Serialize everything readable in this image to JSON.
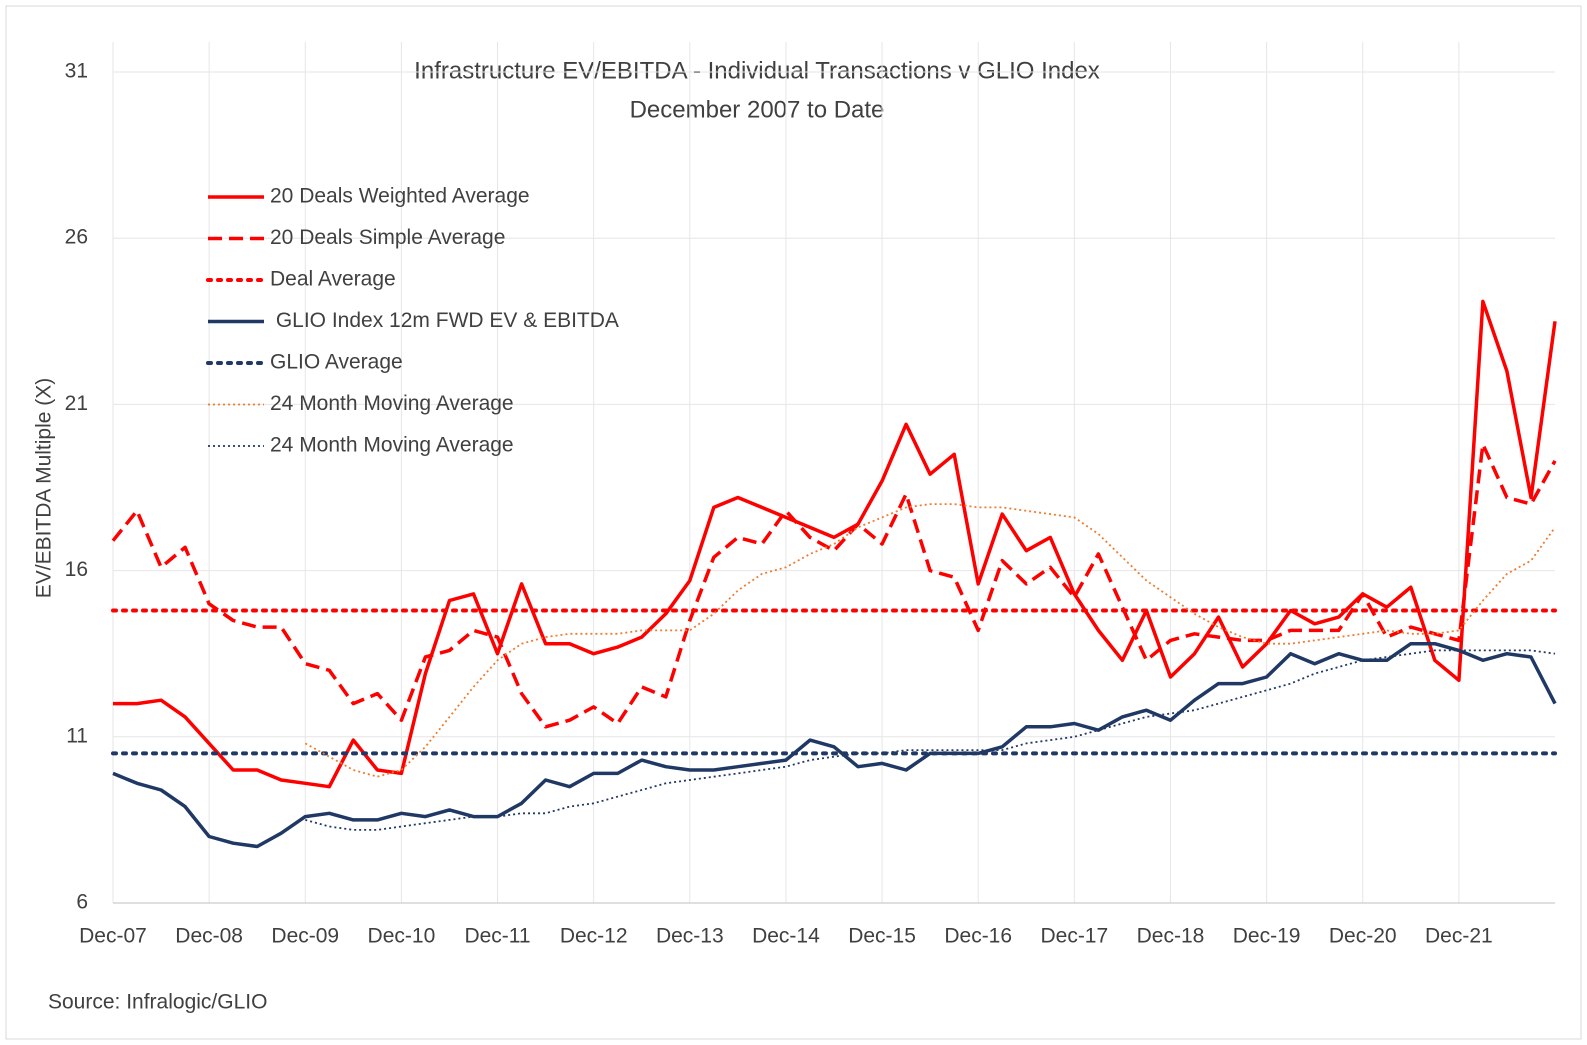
{
  "chart_data": {
    "type": "line",
    "title": "Infrastructure EV/EBITDA - Individual Transactions v GLIO Index",
    "subtitle": "December 2007 to Date",
    "y_label": "EV/EBITDA Multiple (X)",
    "source": "Source: Infralogic/GLIO",
    "categories": [
      "Dec-07",
      null,
      null,
      null,
      "Dec-08",
      null,
      null,
      null,
      "Dec-09",
      null,
      null,
      null,
      "Dec-10",
      null,
      null,
      null,
      "Dec-11",
      null,
      null,
      null,
      "Dec-12",
      null,
      null,
      null,
      "Dec-13",
      null,
      null,
      null,
      "Dec-14",
      null,
      null,
      null,
      "Dec-15",
      null,
      null,
      null,
      "Dec-16",
      null,
      null,
      null,
      "Dec-17",
      null,
      null,
      null,
      "Dec-18",
      null,
      null,
      null,
      "Dec-19",
      null,
      null,
      null,
      "Dec-20",
      null,
      null,
      null,
      "Dec-21",
      null,
      null,
      null,
      null
    ],
    "ylim": [
      6,
      31
    ],
    "yticks": [
      6,
      11,
      16,
      21,
      26,
      31
    ],
    "grid": true,
    "series": [
      {
        "name": "20 Deals Weighted Average",
        "color": "#ff0000",
        "style": "solid",
        "values": [
          12.0,
          12.0,
          12.1,
          11.6,
          10.8,
          10.0,
          10.0,
          9.7,
          9.6,
          9.5,
          10.9,
          10.0,
          9.9,
          12.9,
          15.1,
          15.3,
          13.5,
          15.6,
          13.8,
          13.8,
          13.5,
          13.7,
          14.0,
          14.7,
          15.7,
          17.9,
          18.2,
          17.9,
          17.6,
          17.3,
          17.0,
          17.4,
          18.7,
          20.4,
          18.9,
          19.5,
          15.6,
          17.7,
          16.6,
          17.0,
          15.3,
          14.2,
          13.3,
          14.8,
          12.8,
          13.5,
          14.6,
          13.1,
          13.8,
          14.8,
          14.4,
          14.6,
          15.3,
          14.9,
          15.5,
          13.3,
          12.7,
          24.1,
          22.0,
          18.2,
          23.5
        ]
      },
      {
        "name": "20 Deals Simple Average",
        "color": "#ff0000",
        "style": "dashed",
        "values": [
          16.9,
          17.8,
          16.1,
          16.7,
          15.0,
          14.5,
          14.3,
          14.3,
          13.2,
          13.0,
          12.0,
          12.3,
          11.5,
          13.4,
          13.6,
          14.2,
          14.0,
          12.3,
          11.3,
          11.5,
          11.9,
          11.4,
          12.5,
          12.2,
          14.5,
          16.4,
          17.0,
          16.8,
          17.8,
          17.0,
          16.6,
          17.4,
          16.8,
          18.3,
          16.0,
          15.8,
          14.2,
          16.3,
          15.6,
          16.1,
          15.2,
          16.5,
          14.9,
          13.3,
          13.9,
          14.1,
          14.0,
          13.9,
          13.9,
          14.2,
          14.2,
          14.2,
          15.3,
          14.0,
          14.3,
          14.1,
          13.9,
          19.8,
          18.2,
          18.0,
          19.3
        ]
      },
      {
        "name": "Deal Average",
        "color": "#ff0000",
        "style": "dotted",
        "value": 14.8
      },
      {
        "name": " GLIO Index 12m FWD EV & EBITDA",
        "color": "#203864",
        "style": "solid",
        "values": [
          9.9,
          9.6,
          9.4,
          8.9,
          8.0,
          7.8,
          7.7,
          8.1,
          8.6,
          8.7,
          8.5,
          8.5,
          8.7,
          8.6,
          8.8,
          8.6,
          8.6,
          9.0,
          9.7,
          9.5,
          9.9,
          9.9,
          10.3,
          10.1,
          10.0,
          10.0,
          10.1,
          10.2,
          10.3,
          10.9,
          10.7,
          10.1,
          10.2,
          10.0,
          10.5,
          10.5,
          10.5,
          10.7,
          11.3,
          11.3,
          11.4,
          11.2,
          11.6,
          11.8,
          11.5,
          12.1,
          12.6,
          12.6,
          12.8,
          13.5,
          13.2,
          13.5,
          13.3,
          13.3,
          13.8,
          13.8,
          13.6,
          13.3,
          13.5,
          13.4,
          12.0
        ]
      },
      {
        "name": "GLIO Average",
        "color": "#203864",
        "style": "dotted",
        "value": 10.5
      },
      {
        "name": "24 Month Moving Average",
        "color": "#ed7d31",
        "style": "thin-dotted",
        "values": [
          null,
          null,
          null,
          null,
          null,
          null,
          null,
          null,
          10.8,
          10.4,
          10.0,
          9.8,
          10.0,
          10.7,
          11.6,
          12.5,
          13.3,
          13.8,
          14.0,
          14.1,
          14.1,
          14.1,
          14.2,
          14.2,
          14.2,
          14.7,
          15.4,
          15.9,
          16.1,
          16.5,
          16.8,
          17.3,
          17.6,
          17.9,
          18.0,
          18.0,
          17.9,
          17.9,
          17.8,
          17.7,
          17.6,
          17.1,
          16.4,
          15.7,
          15.2,
          14.7,
          14.3,
          14.0,
          13.8,
          13.8,
          13.9,
          14.0,
          14.1,
          14.2,
          14.1,
          14.1,
          14.2,
          15.1,
          15.9,
          16.3,
          17.3
        ]
      },
      {
        "name": "24 Month Moving Average",
        "color": "#203864",
        "style": "thin-dotted",
        "values": [
          null,
          null,
          null,
          null,
          null,
          null,
          null,
          null,
          8.5,
          8.3,
          8.2,
          8.2,
          8.3,
          8.4,
          8.5,
          8.6,
          8.6,
          8.7,
          8.7,
          8.9,
          9.0,
          9.2,
          9.4,
          9.6,
          9.7,
          9.8,
          9.9,
          10.0,
          10.1,
          10.3,
          10.4,
          10.5,
          10.5,
          10.6,
          10.6,
          10.6,
          10.6,
          10.6,
          10.8,
          10.9,
          11.0,
          11.2,
          11.4,
          11.6,
          11.7,
          11.8,
          12.0,
          12.2,
          12.4,
          12.6,
          12.9,
          13.1,
          13.3,
          13.4,
          13.5,
          13.6,
          13.6,
          13.6,
          13.6,
          13.6,
          13.5
        ]
      }
    ]
  }
}
